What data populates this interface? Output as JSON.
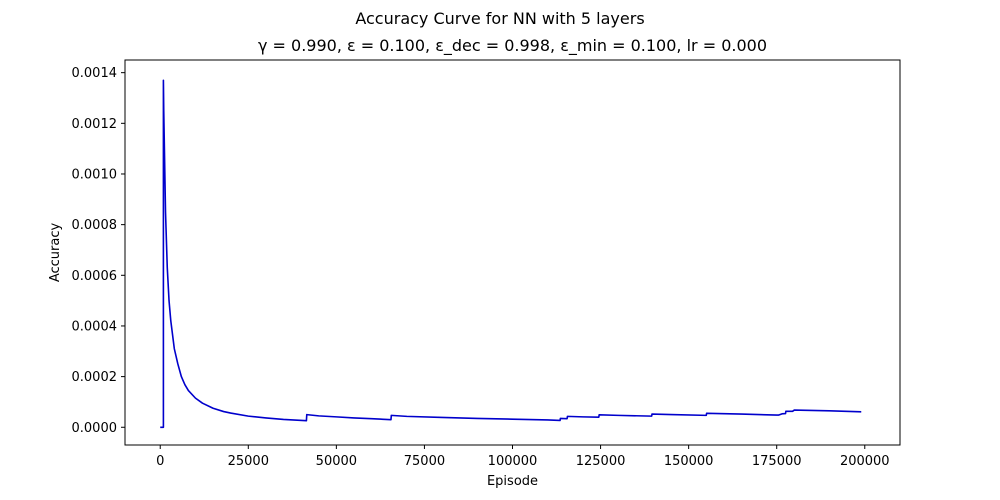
{
  "chart_data": {
    "type": "line",
    "title": "Accuracy Curve for NN with 5 layers",
    "subtitle": "γ = 0.990, ε = 0.100, ε_dec = 0.998, ε_min = 0.100, lr = 0.000",
    "xlabel": "Episode",
    "ylabel": "Accuracy",
    "xlim": [
      -10000,
      210000
    ],
    "ylim": [
      -7e-05,
      0.00145
    ],
    "xticks": [
      0,
      25000,
      50000,
      75000,
      100000,
      125000,
      150000,
      175000,
      200000
    ],
    "xtick_labels": [
      "0",
      "25000",
      "50000",
      "75000",
      "100000",
      "125000",
      "150000",
      "175000",
      "200000"
    ],
    "yticks": [
      0.0,
      0.0002,
      0.0004,
      0.0006,
      0.0008,
      0.001,
      0.0012,
      0.0014
    ],
    "ytick_labels": [
      "0.0000",
      "0.0002",
      "0.0004",
      "0.0006",
      "0.0008",
      "0.0010",
      "0.0012",
      "0.0014"
    ],
    "grid": false,
    "colors": {
      "line": "#0000cc",
      "axes": "#000000"
    },
    "series": [
      {
        "x": [
          0,
          900,
          900,
          1000,
          1500,
          2000,
          2500,
          3000,
          4000,
          5000,
          6000,
          7000,
          8000,
          10000,
          12000,
          15000,
          18000,
          20000,
          25000,
          30000,
          35000,
          41500,
          41600,
          45000,
          50000,
          55000,
          60000,
          65500,
          65600,
          70000,
          80000,
          90000,
          100000,
          110000,
          113500,
          113600,
          115500,
          115600,
          120000,
          124500,
          124600,
          130000,
          139500,
          139600,
          145000,
          155000,
          155100,
          165000,
          175000,
          175500,
          176500,
          177500,
          177600,
          179500,
          180000,
          190000,
          199000
        ],
        "y": [
          0.0,
          0.0,
          0.00137,
          0.00125,
          0.00085,
          0.00063,
          0.0005,
          0.00042,
          0.00031,
          0.00025,
          0.0002,
          0.000168,
          0.000145,
          0.000115,
          9.5e-05,
          7.5e-05,
          6.2e-05,
          5.6e-05,
          4.4e-05,
          3.7e-05,
          3.1e-05,
          2.6e-05,
          5e-05,
          4.5e-05,
          4.1e-05,
          3.7e-05,
          3.4e-05,
          3e-05,
          4.7e-05,
          4.3e-05,
          3.9e-05,
          3.5e-05,
          3.2e-05,
          2.9e-05,
          2.7e-05,
          3.5e-05,
          3.4e-05,
          4.3e-05,
          4.1e-05,
          4e-05,
          4.9e-05,
          4.7e-05,
          4.4e-05,
          5.2e-05,
          5e-05,
          4.7e-05,
          5.5e-05,
          5.2e-05,
          4.8e-05,
          4.8e-05,
          5.3e-05,
          5.4e-05,
          6.3e-05,
          6.3e-05,
          6.8e-05,
          6.5e-05,
          6.1e-05
        ]
      }
    ]
  }
}
